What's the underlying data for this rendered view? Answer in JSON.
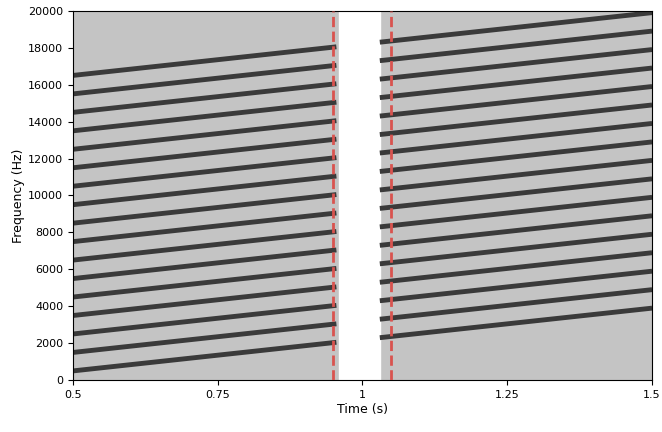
{
  "chart_data": {
    "type": "spectrogram",
    "x_label": "Time (s)",
    "y_label": "Frequency (Hz)",
    "xlim": [
      0.5,
      1.5
    ],
    "xticks": [
      0.5,
      0.75,
      1,
      1.25,
      1.5
    ],
    "ylim": [
      0,
      20000
    ],
    "yticks": [
      0,
      2000,
      4000,
      6000,
      8000,
      10000,
      12000,
      14000,
      16000,
      18000,
      20000
    ],
    "grid": false,
    "color": "#3a3a3a",
    "x": [
      0.5,
      0.955,
      0.99,
      1.03,
      1.5
    ],
    "series": [
      {
        "values": [
          500,
          2050,
          null,
          2300,
          3900
        ]
      },
      {
        "values": [
          1500,
          3050,
          null,
          3300,
          4900
        ]
      },
      {
        "values": [
          2500,
          4050,
          null,
          4300,
          5900
        ]
      },
      {
        "values": [
          3500,
          5050,
          null,
          5300,
          6900
        ]
      },
      {
        "values": [
          4500,
          6050,
          null,
          6300,
          7900
        ]
      },
      {
        "values": [
          5500,
          7050,
          null,
          7300,
          8900
        ]
      },
      {
        "values": [
          6500,
          8050,
          null,
          8300,
          9900
        ]
      },
      {
        "values": [
          7500,
          9050,
          null,
          9300,
          10900
        ]
      },
      {
        "values": [
          8500,
          10050,
          null,
          10300,
          11900
        ]
      },
      {
        "values": [
          9500,
          11050,
          null,
          11300,
          12900
        ]
      },
      {
        "values": [
          10500,
          12050,
          null,
          12300,
          13900
        ]
      },
      {
        "values": [
          11500,
          13050,
          null,
          13300,
          14900
        ]
      },
      {
        "values": [
          12500,
          14050,
          null,
          14300,
          15900
        ]
      },
      {
        "values": [
          13500,
          15050,
          null,
          15300,
          16900
        ]
      },
      {
        "values": [
          14500,
          16050,
          null,
          16300,
          17900
        ]
      },
      {
        "values": [
          15500,
          17050,
          null,
          17300,
          18900
        ]
      },
      {
        "values": [
          16500,
          18050,
          null,
          18300,
          19900
        ]
      }
    ],
    "silence": [
      0.96,
      1.03
    ],
    "markers": {
      "values": [
        0.95,
        1.05
      ],
      "color": "#d9534f",
      "line_style": "dashed"
    }
  }
}
